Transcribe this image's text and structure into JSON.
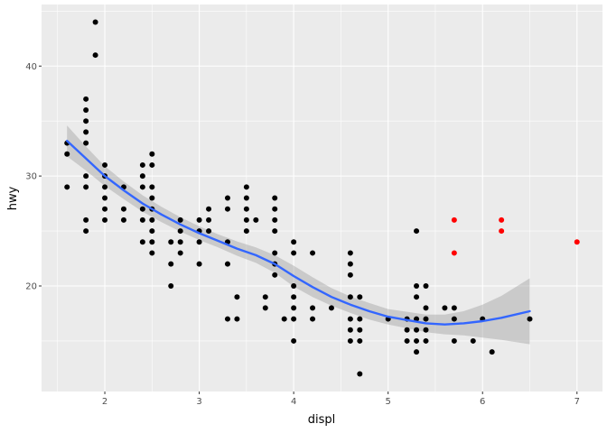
{
  "chart_data": {
    "type": "scatter",
    "xlabel": "displ",
    "ylabel": "hwy",
    "xlim": [
      1.33,
      7.27
    ],
    "ylim": [
      10.4,
      45.6
    ],
    "x_ticks": [
      2,
      3,
      4,
      5,
      6,
      7
    ],
    "y_ticks": [
      20,
      30,
      40
    ],
    "grid": true,
    "panel_background": "#ebebeb",
    "grid_color": "#ffffff",
    "point_color": "#000000",
    "highlight_color": "#ff0000",
    "smooth_color": "#3366ff",
    "ribbon_color": "#999999",
    "points": [
      [
        1.6,
        33
      ],
      [
        1.6,
        32
      ],
      [
        1.6,
        29
      ],
      [
        1.8,
        37
      ],
      [
        1.8,
        36
      ],
      [
        1.8,
        35
      ],
      [
        1.8,
        34
      ],
      [
        1.8,
        33
      ],
      [
        1.8,
        30
      ],
      [
        1.8,
        29
      ],
      [
        1.8,
        26
      ],
      [
        1.8,
        25
      ],
      [
        1.9,
        44
      ],
      [
        1.9,
        41
      ],
      [
        2.0,
        31
      ],
      [
        2.0,
        30
      ],
      [
        2.0,
        29
      ],
      [
        2.0,
        28
      ],
      [
        2.0,
        27
      ],
      [
        2.0,
        26
      ],
      [
        2.2,
        29
      ],
      [
        2.2,
        27
      ],
      [
        2.2,
        26
      ],
      [
        2.4,
        31
      ],
      [
        2.4,
        30
      ],
      [
        2.4,
        29
      ],
      [
        2.4,
        27
      ],
      [
        2.4,
        26
      ],
      [
        2.4,
        24
      ],
      [
        2.5,
        32
      ],
      [
        2.5,
        31
      ],
      [
        2.5,
        29
      ],
      [
        2.5,
        28
      ],
      [
        2.5,
        27
      ],
      [
        2.5,
        26
      ],
      [
        2.5,
        25
      ],
      [
        2.5,
        24
      ],
      [
        2.5,
        23
      ],
      [
        2.7,
        24
      ],
      [
        2.7,
        22
      ],
      [
        2.7,
        20
      ],
      [
        2.8,
        26
      ],
      [
        2.8,
        25
      ],
      [
        2.8,
        24
      ],
      [
        2.8,
        23
      ],
      [
        3.0,
        26
      ],
      [
        3.0,
        25
      ],
      [
        3.0,
        24
      ],
      [
        3.0,
        22
      ],
      [
        3.1,
        27
      ],
      [
        3.1,
        26
      ],
      [
        3.1,
        25
      ],
      [
        3.3,
        28
      ],
      [
        3.3,
        27
      ],
      [
        3.3,
        24
      ],
      [
        3.3,
        22
      ],
      [
        3.3,
        17
      ],
      [
        3.4,
        19
      ],
      [
        3.4,
        17
      ],
      [
        3.5,
        29
      ],
      [
        3.5,
        28
      ],
      [
        3.5,
        27
      ],
      [
        3.5,
        26
      ],
      [
        3.5,
        25
      ],
      [
        3.6,
        26
      ],
      [
        3.7,
        19
      ],
      [
        3.7,
        18
      ],
      [
        3.8,
        28
      ],
      [
        3.8,
        27
      ],
      [
        3.8,
        26
      ],
      [
        3.8,
        25
      ],
      [
        3.8,
        23
      ],
      [
        3.8,
        22
      ],
      [
        3.8,
        21
      ],
      [
        3.9,
        17
      ],
      [
        4.0,
        24
      ],
      [
        4.0,
        23
      ],
      [
        4.0,
        20
      ],
      [
        4.0,
        19
      ],
      [
        4.0,
        18
      ],
      [
        4.0,
        17
      ],
      [
        4.0,
        15
      ],
      [
        4.2,
        23
      ],
      [
        4.2,
        18
      ],
      [
        4.2,
        17
      ],
      [
        4.4,
        18
      ],
      [
        4.6,
        23
      ],
      [
        4.6,
        22
      ],
      [
        4.6,
        21
      ],
      [
        4.6,
        19
      ],
      [
        4.6,
        17
      ],
      [
        4.6,
        16
      ],
      [
        4.6,
        15
      ],
      [
        4.7,
        19
      ],
      [
        4.7,
        17
      ],
      [
        4.7,
        16
      ],
      [
        4.7,
        15
      ],
      [
        4.7,
        12
      ],
      [
        5.0,
        17
      ],
      [
        5.2,
        17
      ],
      [
        5.2,
        16
      ],
      [
        5.2,
        15
      ],
      [
        5.3,
        25
      ],
      [
        5.3,
        20
      ],
      [
        5.3,
        19
      ],
      [
        5.3,
        17
      ],
      [
        5.3,
        16
      ],
      [
        5.3,
        15
      ],
      [
        5.3,
        14
      ],
      [
        5.4,
        20
      ],
      [
        5.4,
        18
      ],
      [
        5.4,
        17
      ],
      [
        5.4,
        16
      ],
      [
        5.4,
        15
      ],
      [
        5.6,
        18
      ],
      [
        5.7,
        18
      ],
      [
        5.7,
        17
      ],
      [
        5.7,
        15
      ],
      [
        5.9,
        15
      ],
      [
        6.0,
        17
      ],
      [
        6.1,
        14
      ],
      [
        6.5,
        17
      ]
    ],
    "highlight_points": [
      [
        5.7,
        26
      ],
      [
        5.7,
        23
      ],
      [
        6.2,
        26
      ],
      [
        6.2,
        25
      ],
      [
        7.0,
        24
      ]
    ],
    "smooth": [
      [
        1.6,
        33.2
      ],
      [
        1.8,
        31.6
      ],
      [
        2.0,
        30.0
      ],
      [
        2.2,
        28.7
      ],
      [
        2.4,
        27.5
      ],
      [
        2.6,
        26.5
      ],
      [
        2.8,
        25.6
      ],
      [
        3.0,
        24.8
      ],
      [
        3.2,
        24.1
      ],
      [
        3.4,
        23.4
      ],
      [
        3.6,
        22.8
      ],
      [
        3.8,
        22.0
      ],
      [
        4.0,
        20.9
      ],
      [
        4.2,
        19.9
      ],
      [
        4.4,
        19.0
      ],
      [
        4.6,
        18.3
      ],
      [
        4.8,
        17.7
      ],
      [
        5.0,
        17.2
      ],
      [
        5.2,
        16.9
      ],
      [
        5.4,
        16.6
      ],
      [
        5.6,
        16.5
      ],
      [
        5.8,
        16.6
      ],
      [
        6.0,
        16.8
      ],
      [
        6.2,
        17.1
      ],
      [
        6.5,
        17.7
      ]
    ],
    "ribbon_half_width": [
      1.4,
      1.1,
      0.9,
      0.8,
      0.75,
      0.7,
      0.65,
      0.62,
      0.6,
      0.65,
      0.7,
      0.8,
      0.95,
      0.9,
      0.8,
      0.75,
      0.75,
      0.7,
      0.75,
      0.8,
      0.9,
      1.1,
      1.5,
      2.0,
      3.0
    ]
  }
}
